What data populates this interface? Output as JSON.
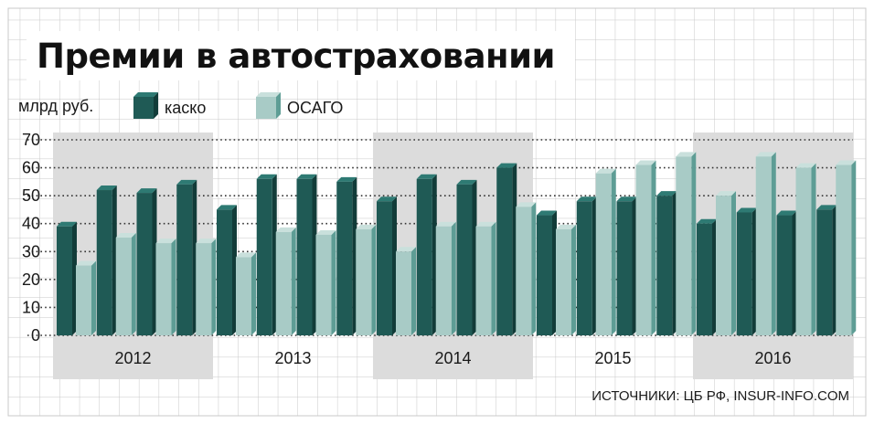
{
  "title": "Премии в автостраховании",
  "source": "ИСТОЧНИКИ: ЦБ РФ, INSUR-INFO.COM",
  "colors": {
    "kasko": "#1f5a55",
    "kasko_top": "#2e7a73",
    "kasko_side": "#123c39",
    "osago": "#a8cbc6",
    "osago_top": "#c9e0dc",
    "osago_side": "#5e9d95",
    "band": "#dcdcdc",
    "grid_dots": "#333333",
    "paper_grid": "#c8c8c8"
  },
  "chart_data": {
    "type": "bar",
    "title": "Премии в автостраховании",
    "ylabel": "млрд руб.",
    "ylim": [
      0,
      70
    ],
    "yticks": [
      "0",
      "10",
      "20",
      "30",
      "40",
      "50",
      "60",
      "70"
    ],
    "years": [
      "2012",
      "2013",
      "2014",
      "2015",
      "2016"
    ],
    "quarters_per_year": 4,
    "legend_position": "top-left",
    "grid": true,
    "series": [
      {
        "name": "каско",
        "values": [
          39,
          52,
          51,
          54,
          45,
          56,
          56,
          55,
          48,
          56,
          54,
          60,
          43,
          48,
          48,
          50,
          40,
          44,
          43,
          45
        ]
      },
      {
        "name": "ОСАГО",
        "values": [
          25,
          35,
          33,
          33,
          28,
          37,
          36,
          38,
          30,
          39,
          39,
          46,
          38,
          58,
          61,
          64,
          50,
          64,
          60,
          61
        ]
      }
    ]
  }
}
